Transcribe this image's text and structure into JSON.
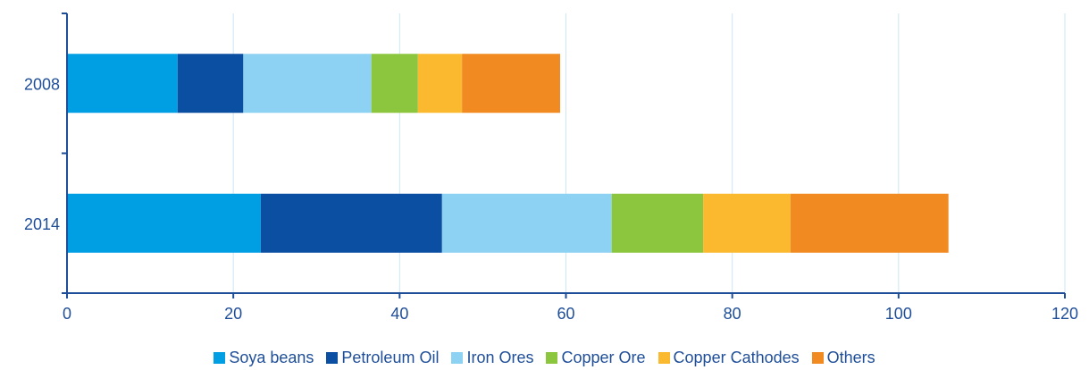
{
  "chart_data": {
    "type": "bar",
    "orientation": "horizontal",
    "stacked": true,
    "categories": [
      "2008",
      "2014"
    ],
    "series": [
      {
        "name": "Soya beans",
        "color": "#009fe3",
        "values": [
          13.3,
          23.3
        ]
      },
      {
        "name": "Petroleum Oil",
        "color": "#0b4fa3",
        "values": [
          7.9,
          21.8
        ]
      },
      {
        "name": "Iron Ores",
        "color": "#8dd2f2",
        "values": [
          15.4,
          20.4
        ]
      },
      {
        "name": "Copper Ore",
        "color": "#8cc63f",
        "values": [
          5.6,
          11.0
        ]
      },
      {
        "name": "Copper Cathodes",
        "color": "#fbb92f",
        "values": [
          5.3,
          10.5
        ]
      },
      {
        "name": "Others",
        "color": "#f18a21",
        "values": [
          11.8,
          19.0
        ]
      }
    ],
    "xlim": [
      0,
      120
    ],
    "xticks": [
      "0",
      "20",
      "40",
      "60",
      "80",
      "100",
      "120"
    ],
    "grid": "vertical",
    "legend_position": "bottom",
    "axis_color": "#1f4e99",
    "grid_color": "#cde6f5"
  }
}
